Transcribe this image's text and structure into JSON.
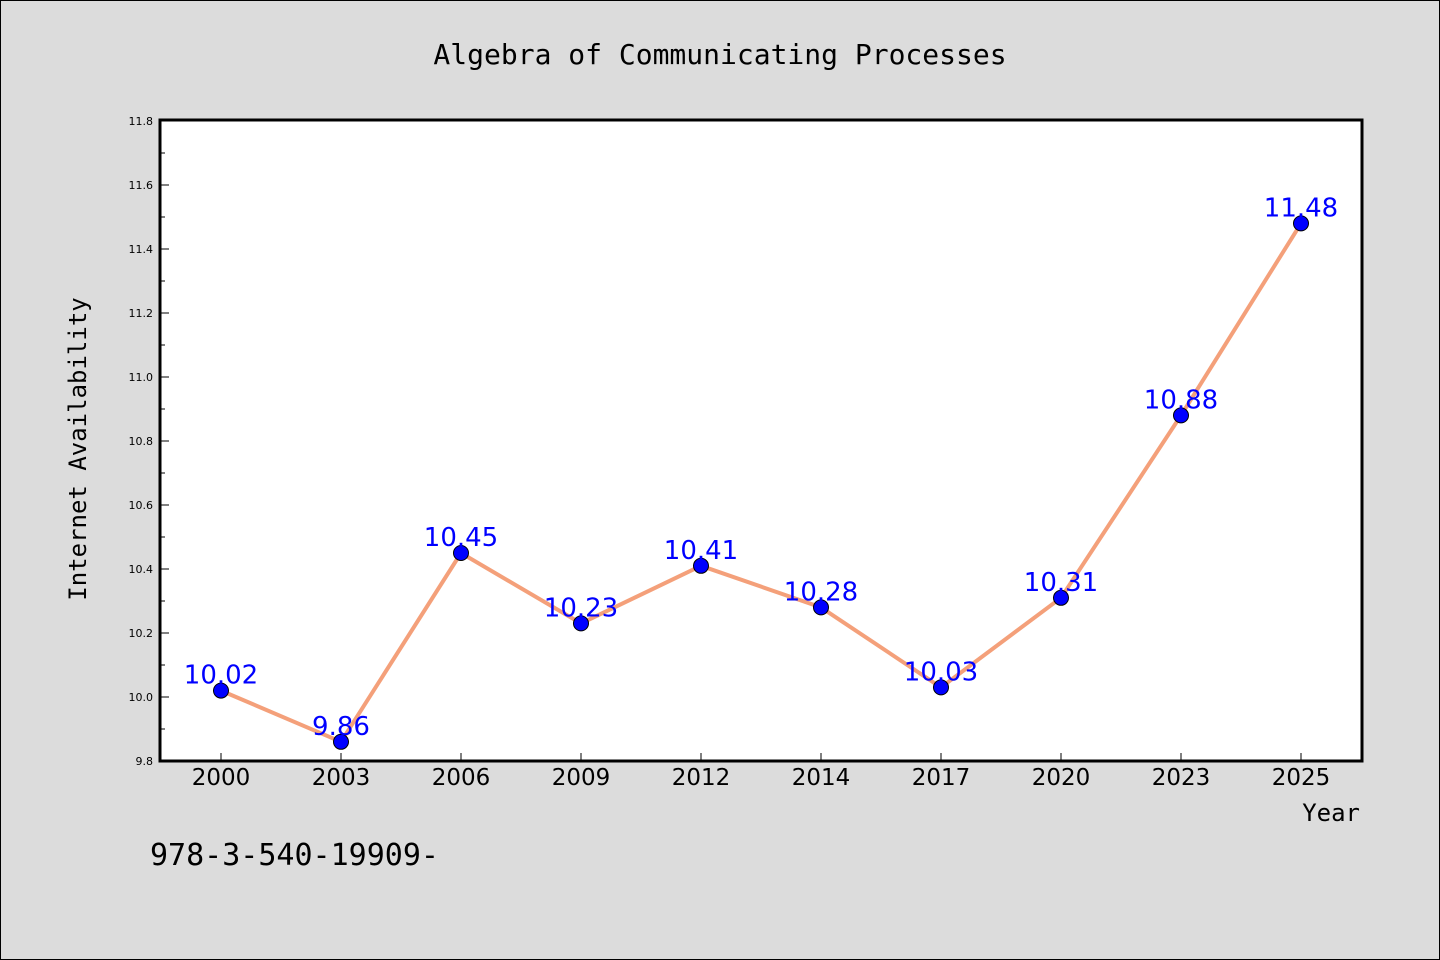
{
  "chart_data": {
    "type": "line",
    "title": "Algebra of Communicating Processes",
    "xlabel": "Year",
    "ylabel": "Internet Availability",
    "categories": [
      "2000",
      "2003",
      "2006",
      "2009",
      "2012",
      "2014",
      "2017",
      "2020",
      "2023",
      "2025"
    ],
    "series": [
      {
        "values": [
          10.02,
          9.86,
          10.45,
          10.23,
          10.41,
          10.28,
          10.03,
          10.31,
          10.88,
          11.48
        ],
        "data_labels": [
          "10.02",
          "9.86",
          "10.45",
          "10.23",
          "10.41",
          "10.28",
          "10.03",
          "10.31",
          "10.88",
          "11.48"
        ],
        "line_color": "#f4a07a",
        "marker_color": "#0000ff"
      }
    ],
    "ylim": [
      9.8,
      11.8
    ],
    "yticks": [
      9.8,
      10.0,
      10.2,
      10.4,
      10.6,
      10.8,
      11.0,
      11.2,
      11.4,
      11.6,
      11.8
    ],
    "ytick_labels": [
      "9.8",
      "10.0",
      "10.2",
      "10.4",
      "10.6",
      "10.8",
      "11.0",
      "11.2",
      "11.4",
      "11.6",
      "11.8"
    ],
    "grid": false,
    "legend": "none"
  },
  "footnote": "978-3-540-19909-",
  "colors": {
    "background": "#dcdcdc",
    "plot_background": "#ffffff",
    "line": "#f4a07a",
    "marker": "#0000ff",
    "data_label": "#0000ff"
  }
}
